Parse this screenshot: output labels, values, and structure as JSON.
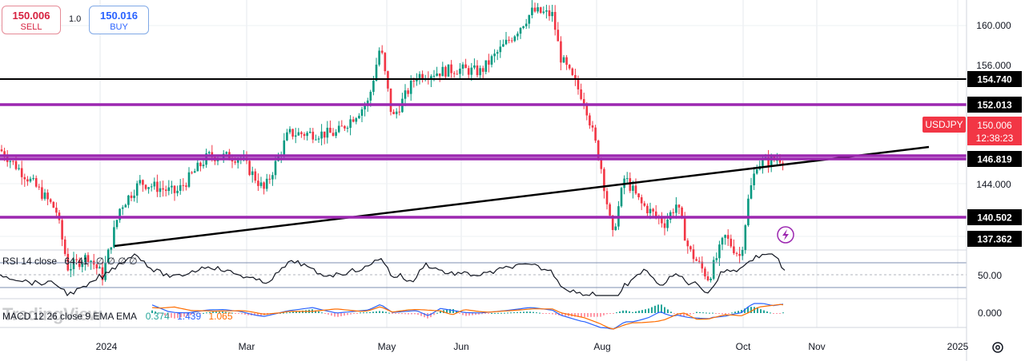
{
  "trade_panel": {
    "sell_price": "150.006",
    "sell_label": "SELL",
    "quantity": "1.0",
    "buy_price": "150.016",
    "buy_label": "BUY"
  },
  "symbol": "USDJPY",
  "last_price": "150.006",
  "countdown": "12:38:23",
  "axis": {
    "price_ticks": [
      "160.000",
      "156.000",
      "144.000"
    ],
    "x_labels": [
      "2024",
      "Mar",
      "May",
      "Jun",
      "Aug",
      "Oct",
      "Nov",
      "2025"
    ],
    "rsi_tick": "50.00",
    "macd_tick": "0.000"
  },
  "levels": [
    {
      "value": "154.740",
      "color": "#000000"
    },
    {
      "value": "152.013",
      "color": "#9c27b0"
    },
    {
      "value": "146.819",
      "color": "#9c27b0"
    },
    {
      "value": "140.502",
      "color": "#9c27b0"
    },
    {
      "value": "137.362",
      "color": "#000000"
    }
  ],
  "rsi": {
    "label": "RSI 14 close",
    "value": "64.41",
    "extra": "∅ ∅ ∅ ∅"
  },
  "macd": {
    "label": "MACD 12 26 close 9 EMA EMA",
    "hist": "0.374",
    "macd": "1.439",
    "signal": "1.065"
  },
  "watermark": "TradingView",
  "colors": {
    "up": "#089981",
    "down": "#f23645",
    "purple": "#9c27b0",
    "line": "#000000",
    "macd_line": "#2962ff",
    "signal_line": "#ff6d00",
    "badge": "#f23645"
  }
}
